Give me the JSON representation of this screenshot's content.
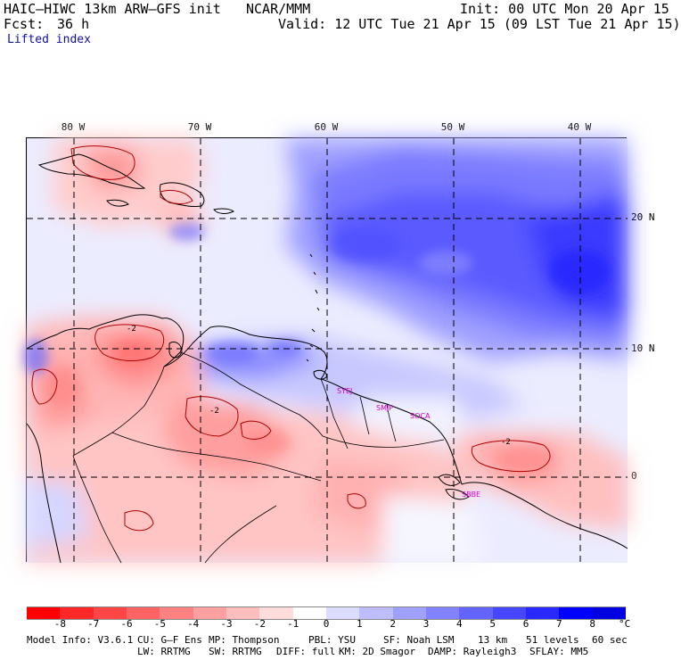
{
  "header": {
    "model": "HAIC–HIWC 13km ARW–GFS init",
    "org": "NCAR/MMM",
    "init": "Init: 00 UTC Mon 20 Apr 15",
    "fcst_label": "Fcst:",
    "fcst_value": "36 h",
    "valid": "Valid: 12 UTC Tue 21 Apr 15 (09 LST Tue 21 Apr 15)",
    "field": "Lifted index"
  },
  "map": {
    "lon_labels": [
      "80 W",
      "70 W",
      "60 W",
      "50 W",
      "40 W"
    ],
    "lat_labels": [
      "20 N",
      "10 N",
      "0"
    ],
    "contour_labels": [
      "-2",
      "-2",
      "-2"
    ],
    "stations": [
      "SYEJ",
      "SMJP",
      "SOCA",
      "SBBE"
    ]
  },
  "colorbar": {
    "ticks": [
      "-8",
      "-7",
      "-6",
      "-5",
      "-4",
      "-3",
      "-2",
      "-1",
      "0",
      "1",
      "2",
      "3",
      "4",
      "5",
      "6",
      "7",
      "8"
    ],
    "unit": "°C",
    "colors": [
      "#ff0000",
      "#ff2828",
      "#ff4646",
      "#ff6464",
      "#ff8282",
      "#ffa0a0",
      "#ffbebe",
      "#ffdcdc",
      "#ffffff",
      "#dcdcff",
      "#bebeff",
      "#a0a0ff",
      "#8282ff",
      "#6464ff",
      "#4646ff",
      "#2828ff",
      "#0000ff",
      "#0000e0"
    ]
  },
  "footer": {
    "line1": [
      "Model Info: V3.6.1",
      "CU: G–F Ens",
      "MP: Thompson",
      "PBL: YSU",
      "SF: Noah LSM",
      "13 km",
      "51 levels",
      "60 sec"
    ],
    "line2": [
      "LW: RRTMG",
      "SW: RRTMG",
      "DIFF: full",
      "KM: 2D Smagor",
      "DAMP: Rayleigh3",
      "SFLAY: MM5"
    ]
  }
}
